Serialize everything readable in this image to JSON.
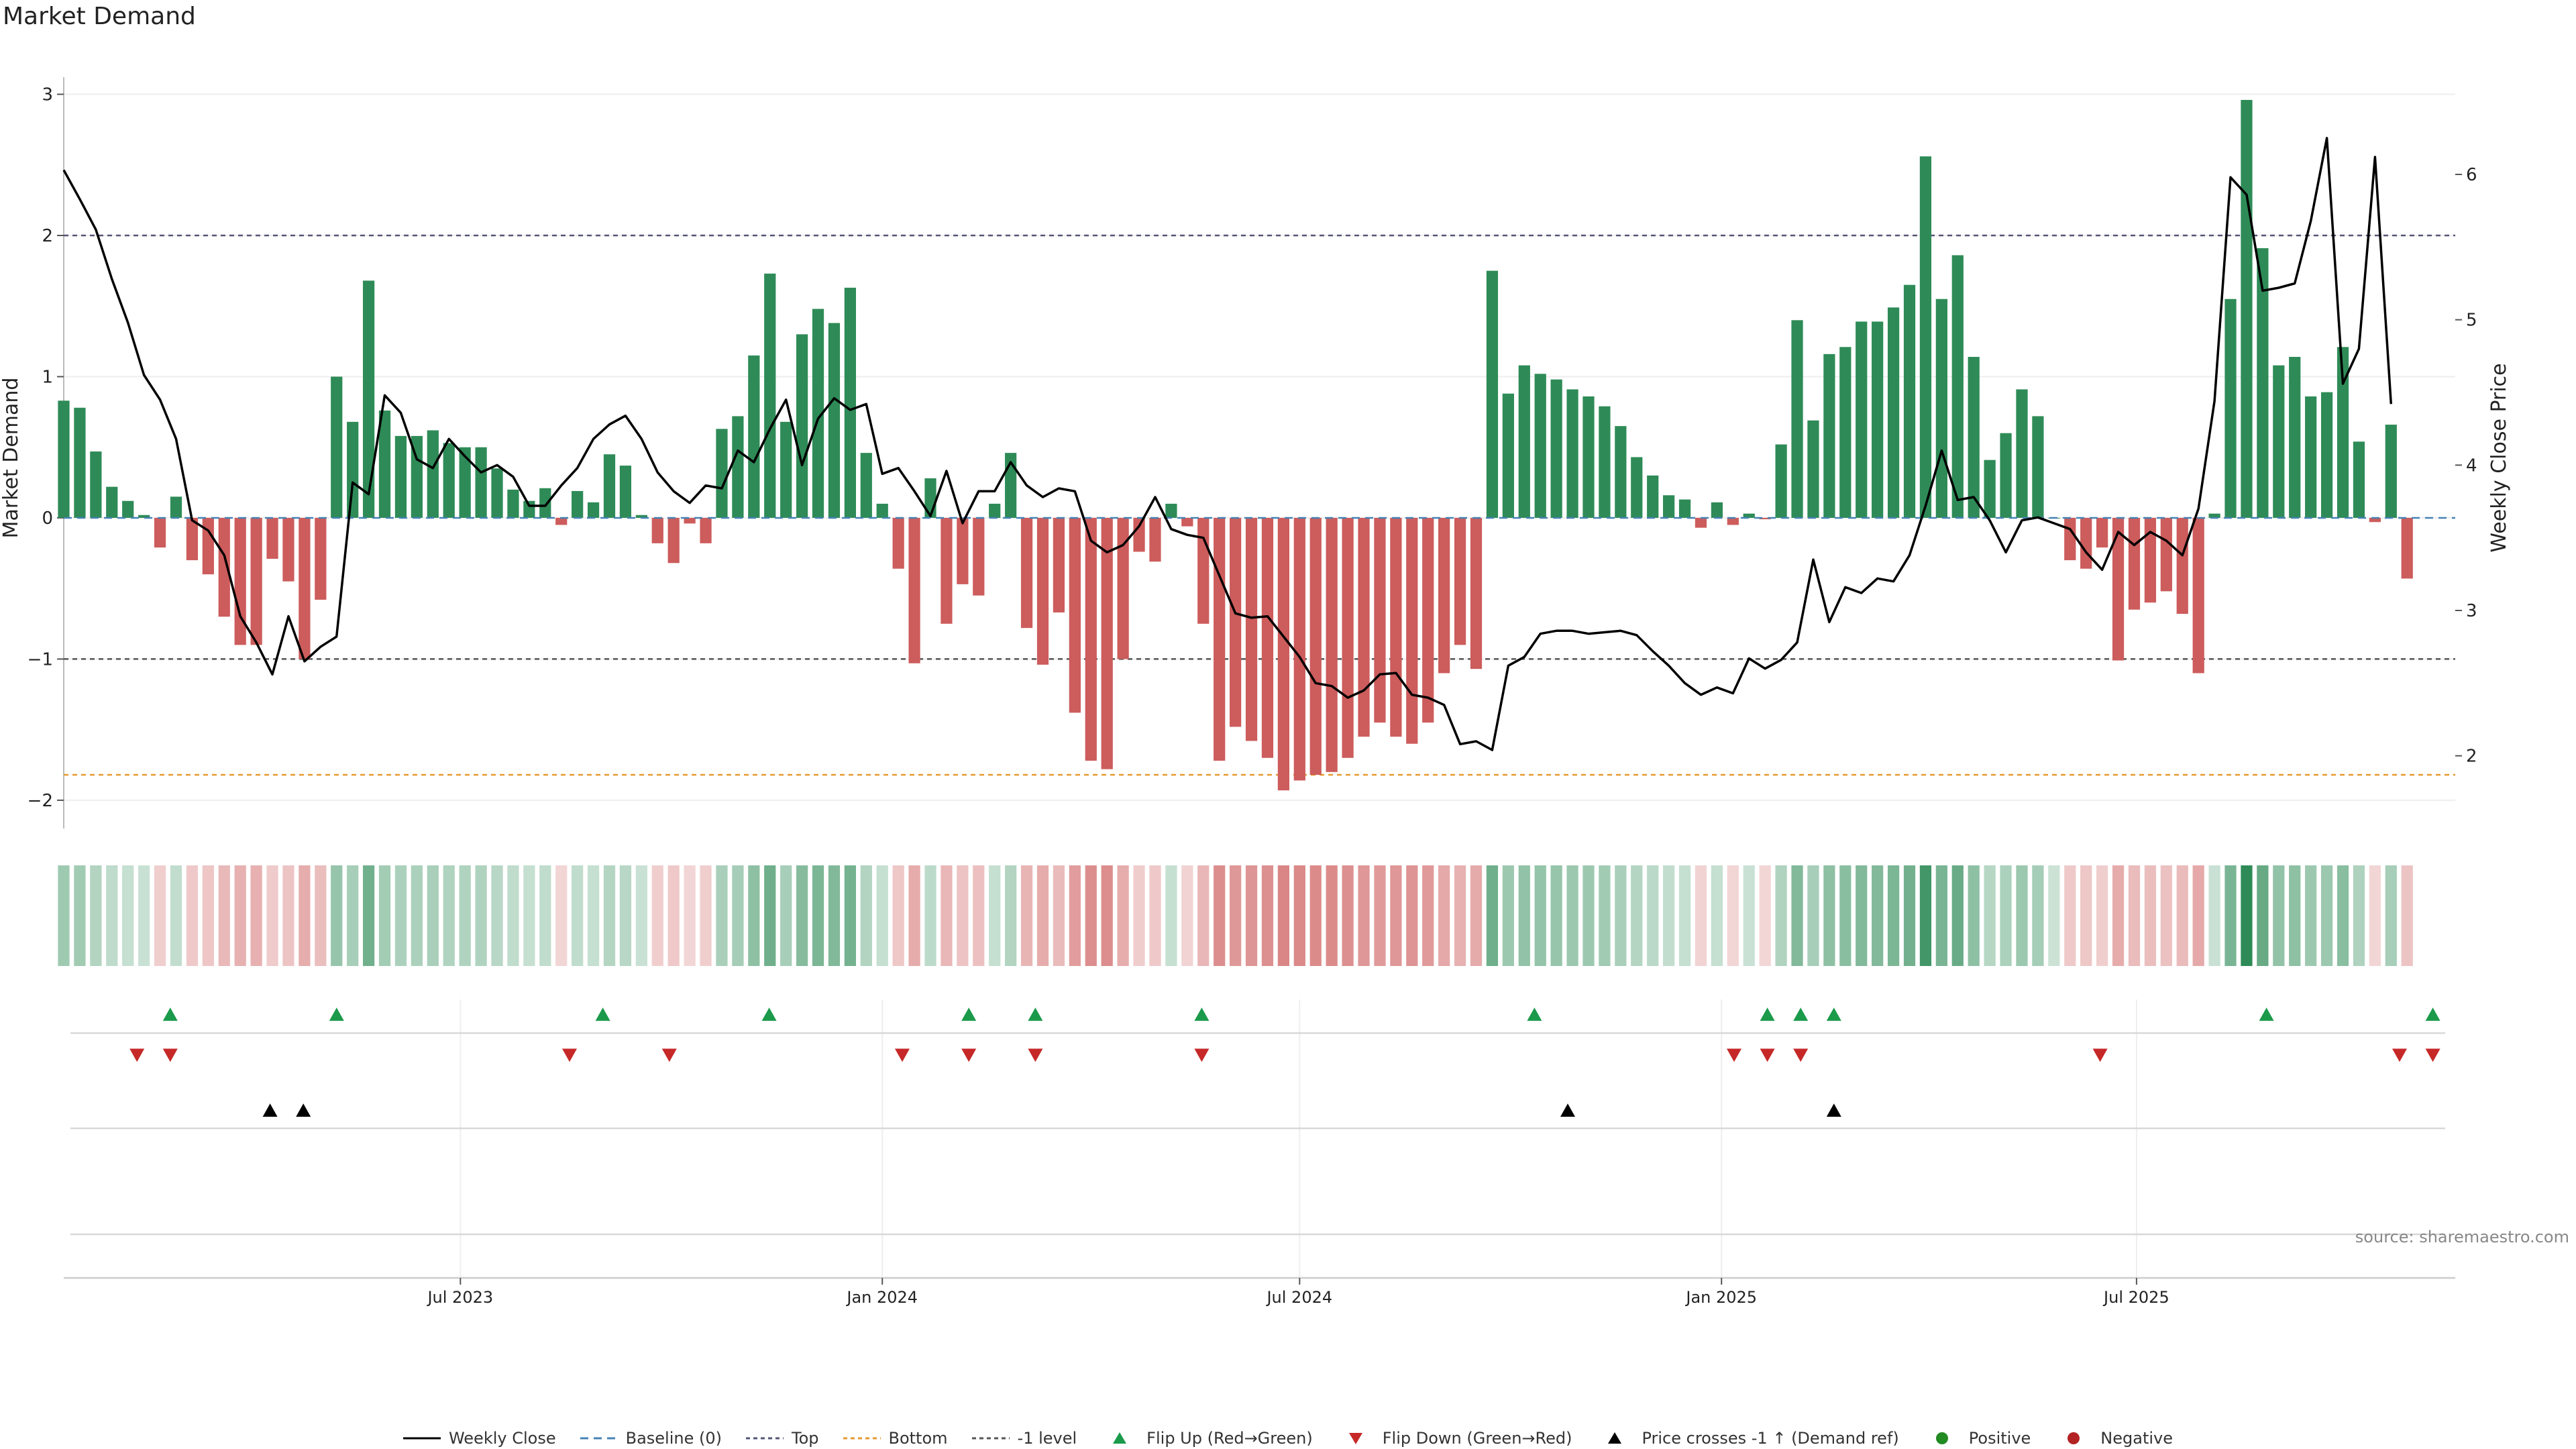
{
  "title": "Market Demand",
  "source": "source: sharemaestro.com",
  "colors": {
    "positive": "#2e8b57",
    "negative": "#cd5c5c",
    "price": "#000000",
    "baseline": "#4682b4",
    "top": "#555577",
    "bottom": "#e69a2e",
    "neg1": "#555555",
    "flip_up": "#1a9a4a",
    "flip_down": "#c62828",
    "cross": "#000000",
    "dot_pos": "#228b22",
    "dot_neg": "#b22222"
  },
  "chart_data": {
    "type": "bar",
    "title": "Market Demand",
    "ylabel": "Market Demand",
    "y2label": "Weekly Close Price",
    "ylim": [
      -2.2,
      3.05
    ],
    "y2lim": [
      1.5,
      6.6
    ],
    "yticks": [
      3,
      2,
      1,
      0,
      -1,
      -2
    ],
    "y2ticks": [
      6,
      5,
      4,
      3,
      2
    ],
    "reference_levels": {
      "top": 2,
      "bottom": -1.82,
      "minus_one": -1,
      "baseline": 0
    },
    "x_start": "2023-01-09",
    "x_end": "2025-11-17",
    "xtick_labels": [
      {
        "date": "2023-07-01",
        "label": "Jul 2023"
      },
      {
        "date": "2024-01-01",
        "label": "Jan 2024"
      },
      {
        "date": "2024-07-01",
        "label": "Jul 2024"
      },
      {
        "date": "2025-01-01",
        "label": "Jan 2025"
      },
      {
        "date": "2025-07-01",
        "label": "Jul 2025"
      }
    ],
    "demand": [
      0.83,
      0.78,
      0.47,
      0.22,
      0.12,
      0.02,
      -0.21,
      0.15,
      -0.3,
      -0.4,
      -0.7,
      -0.9,
      -0.9,
      -0.29,
      -0.45,
      -1.0,
      -0.58,
      1.0,
      0.68,
      1.68,
      0.76,
      0.58,
      0.58,
      0.62,
      0.53,
      0.5,
      0.5,
      0.35,
      0.2,
      0.12,
      0.21,
      -0.05,
      0.19,
      0.11,
      0.45,
      0.37,
      0.02,
      -0.18,
      -0.32,
      -0.04,
      -0.18,
      0.63,
      0.72,
      1.15,
      1.73,
      0.68,
      1.3,
      1.48,
      1.38,
      1.63,
      0.46,
      0.1,
      -0.36,
      -1.03,
      0.28,
      -0.75,
      -0.47,
      -0.55,
      0.1,
      0.46,
      -0.78,
      -1.04,
      -0.67,
      -1.38,
      -1.72,
      -1.78,
      -1.0,
      -0.24,
      -0.31,
      0.1,
      -0.06,
      -0.75,
      -1.72,
      -1.48,
      -1.58,
      -1.7,
      -1.93,
      -1.86,
      -1.82,
      -1.8,
      -1.7,
      -1.55,
      -1.45,
      -1.55,
      -1.6,
      -1.45,
      -1.1,
      -0.9,
      -1.07,
      1.75,
      0.88,
      1.08,
      1.02,
      0.98,
      0.91,
      0.86,
      0.79,
      0.65,
      0.43,
      0.3,
      0.16,
      0.13,
      -0.07,
      0.11,
      -0.05,
      0.03,
      -0.01,
      0.52,
      1.4,
      0.69,
      1.16,
      1.21,
      1.39,
      1.39,
      1.49,
      1.65,
      2.56,
      1.55,
      1.86,
      1.14,
      0.41,
      0.6,
      0.91,
      0.72,
      0.0,
      -0.3,
      -0.36,
      -0.21,
      -1.01,
      -0.65,
      -0.6,
      -0.52,
      -0.68,
      -1.1,
      0.03,
      1.55,
      2.96,
      1.91,
      1.08,
      1.14,
      0.86,
      0.89,
      1.21,
      0.54,
      -0.03,
      0.66,
      -0.43
    ],
    "weekly_close": [
      6.03,
      5.83,
      5.62,
      5.28,
      4.98,
      4.62,
      4.45,
      4.18,
      3.62,
      3.55,
      3.38,
      2.96,
      2.78,
      2.56,
      2.96,
      2.65,
      2.75,
      2.82,
      3.88,
      3.8,
      4.48,
      4.36,
      4.04,
      3.98,
      4.18,
      4.06,
      3.95,
      4.0,
      3.92,
      3.72,
      3.72,
      3.86,
      3.98,
      4.18,
      4.28,
      4.34,
      4.18,
      3.95,
      3.82,
      3.74,
      3.86,
      3.84,
      4.1,
      4.02,
      4.25,
      4.45,
      4.0,
      4.32,
      4.46,
      4.38,
      4.42,
      3.94,
      3.98,
      3.82,
      3.65,
      3.96,
      3.6,
      3.82,
      3.82,
      4.02,
      3.86,
      3.78,
      3.84,
      3.82,
      3.48,
      3.4,
      3.45,
      3.58,
      3.78,
      3.56,
      3.52,
      3.5,
      3.24,
      2.98,
      2.95,
      2.96,
      2.82,
      2.68,
      2.5,
      2.48,
      2.4,
      2.45,
      2.56,
      2.57,
      2.42,
      2.4,
      2.35,
      2.08,
      2.1,
      2.04,
      2.62,
      2.68,
      2.84,
      2.86,
      2.86,
      2.84,
      2.85,
      2.86,
      2.83,
      2.72,
      2.62,
      2.5,
      2.42,
      2.47,
      2.43,
      2.67,
      2.6,
      2.66,
      2.78,
      3.35,
      2.92,
      3.16,
      3.12,
      3.22,
      3.2,
      3.38,
      3.72,
      4.1,
      3.76,
      3.78,
      3.62,
      3.4,
      3.62,
      3.64,
      3.6,
      3.56,
      3.4,
      3.28,
      3.54,
      3.45,
      3.54,
      3.48,
      3.38,
      3.7,
      4.44,
      5.98,
      5.86,
      5.2,
      5.22,
      5.25,
      5.68,
      6.25,
      4.56,
      4.8,
      6.12,
      4.42
    ],
    "flip_up_weeks": [
      3,
      8,
      16,
      21,
      27,
      29,
      34,
      44,
      51,
      52,
      53,
      66,
      71
    ],
    "flip_down_weeks": [
      2,
      3,
      15,
      18,
      25,
      27,
      29,
      34,
      50,
      51,
      52,
      61,
      70,
      71
    ],
    "price_cross_weeks": [
      6,
      7,
      45,
      53
    ],
    "series": [
      {
        "name": "Weekly Close"
      },
      {
        "name": "Baseline (0)"
      },
      {
        "name": "Top"
      },
      {
        "name": "Bottom"
      },
      {
        "name": "-1 level"
      },
      {
        "name": "Flip Up (Red→Green)"
      },
      {
        "name": "Flip Down (Green→Red)"
      },
      {
        "name": "Price crosses -1 ↑ (Demand ref)"
      },
      {
        "name": "Positive"
      },
      {
        "name": "Negative"
      }
    ]
  }
}
